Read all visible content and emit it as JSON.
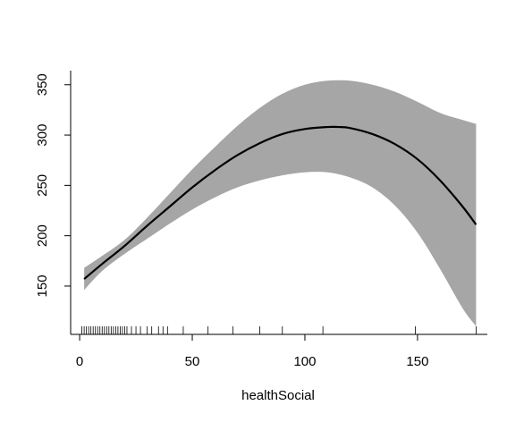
{
  "chart_data": {
    "type": "line",
    "title": "",
    "xlabel": "healthSocial",
    "ylabel": "",
    "xlim": [
      -4,
      181
    ],
    "ylim": [
      102,
      364
    ],
    "x_ticks": [
      0,
      50,
      100,
      150
    ],
    "y_ticks": [
      150,
      200,
      250,
      300,
      350
    ],
    "grid": false,
    "legend": "none",
    "colors": {
      "line": "#000000",
      "band": "#a6a6a6",
      "rug": "#000000"
    },
    "series": [
      {
        "role": "fit",
        "x": [
          2,
          10,
          20,
          30,
          40,
          50,
          60,
          70,
          80,
          90,
          100,
          110,
          115,
          120,
          130,
          140,
          150,
          160,
          170,
          176
        ],
        "y": [
          157,
          172,
          190,
          210,
          229,
          248,
          265,
          280,
          292,
          301,
          306,
          308,
          308,
          307,
          301,
          291,
          276,
          255,
          229,
          211
        ]
      },
      {
        "role": "upper",
        "x": [
          2,
          10,
          20,
          30,
          40,
          50,
          60,
          70,
          80,
          90,
          100,
          110,
          120,
          130,
          140,
          150,
          160,
          170,
          176
        ],
        "y": [
          168,
          180,
          196,
          218,
          242,
          266,
          288,
          309,
          327,
          341,
          350,
          354,
          354,
          350,
          343,
          333,
          322,
          315,
          311
        ]
      },
      {
        "role": "lower",
        "x": [
          2,
          10,
          20,
          30,
          40,
          50,
          60,
          70,
          80,
          90,
          100,
          110,
          120,
          130,
          140,
          150,
          160,
          170,
          176
        ],
        "y": [
          146,
          165,
          182,
          197,
          212,
          226,
          238,
          248,
          255,
          260,
          263,
          263,
          258,
          248,
          230,
          203,
          167,
          128,
          110
        ]
      }
    ],
    "rug": [
      1,
      2,
      3,
      4,
      5,
      6,
      7,
      8,
      9,
      10,
      11,
      12,
      13,
      14,
      15,
      16,
      17,
      18,
      19,
      20,
      21,
      23,
      25,
      27,
      30,
      32,
      35,
      37,
      39,
      46,
      57,
      68,
      80,
      90,
      108,
      149,
      176
    ]
  }
}
